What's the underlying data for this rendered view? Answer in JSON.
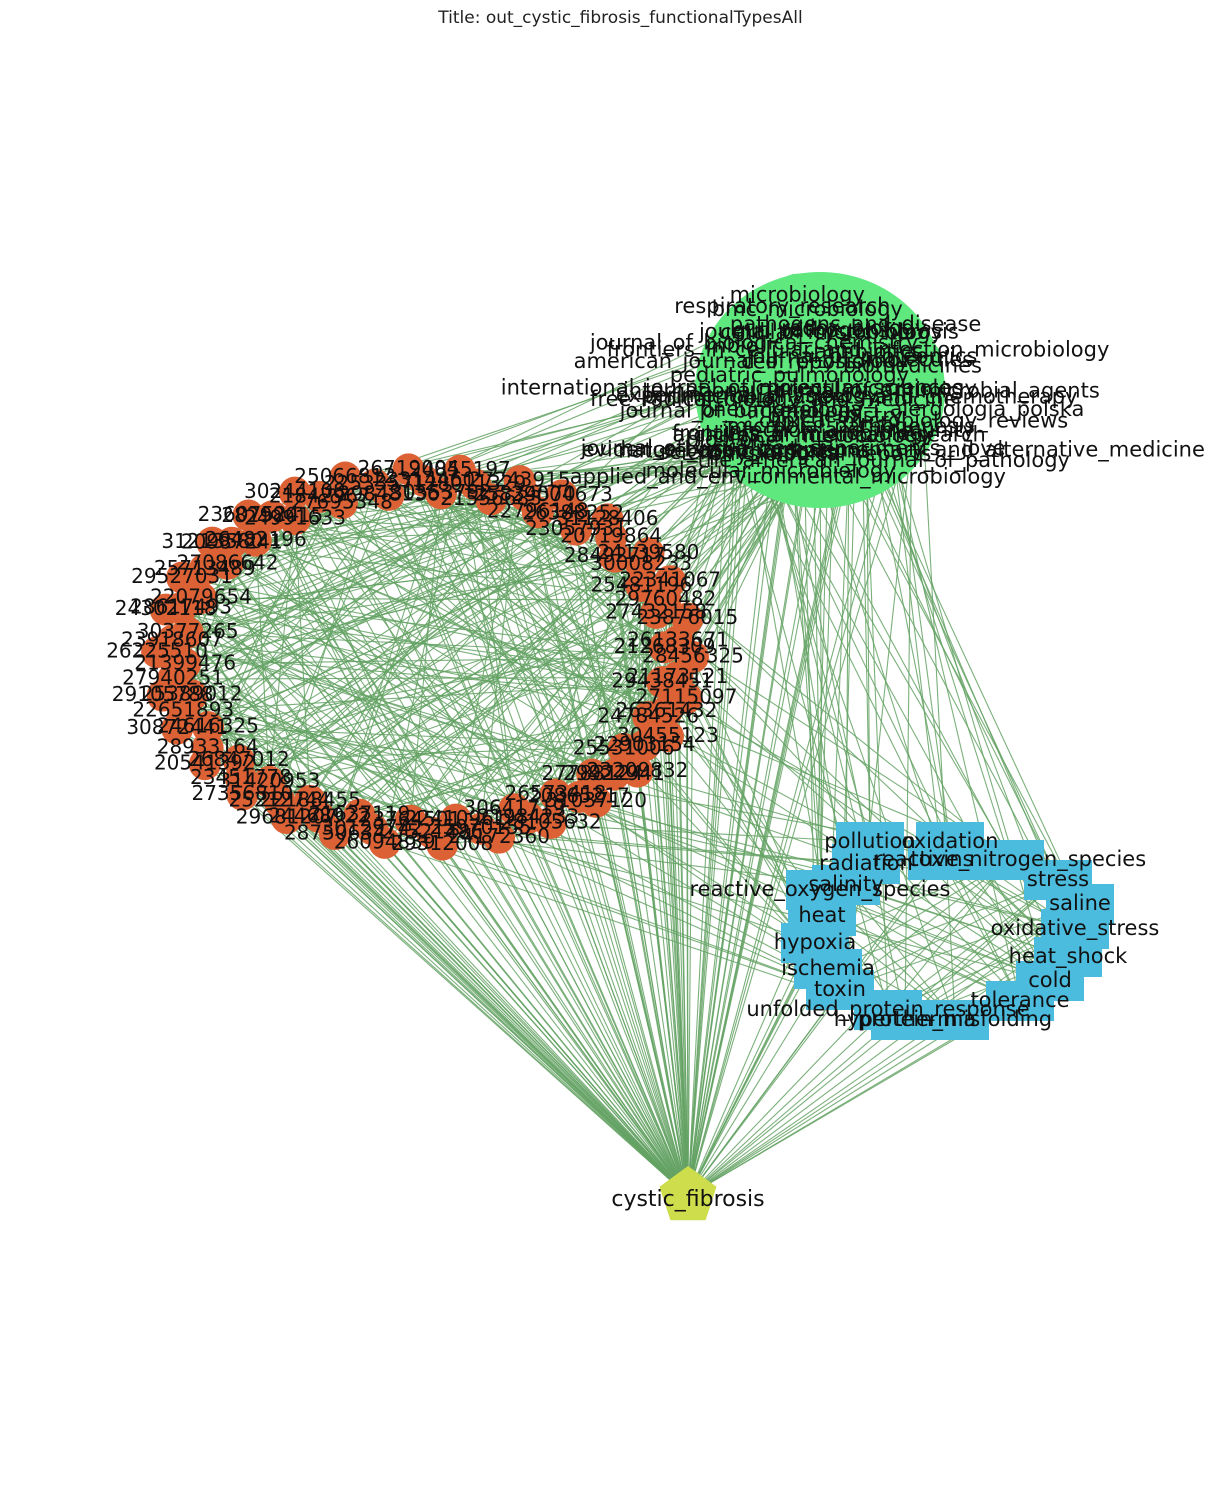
{
  "title": "Title: out_cystic_fibrosis_functionalTypesAll",
  "colors": {
    "edge": "#64a264",
    "journal_node": "#5ee87e",
    "paper_node": "#dc6236",
    "stress_node": "#4bbcde",
    "disease_node": "#cedd4c",
    "label": "#111111"
  },
  "nodes": {
    "disease": {
      "label": "cystic_fibrosis",
      "shape": "pentagon"
    },
    "stress_types": [
      "pollution",
      "oxidation",
      "radiation",
      "toxins",
      "reactive_nitrogen_species",
      "salinity",
      "stress",
      "reactive_oxygen_species",
      "saline",
      "heat",
      "oxidative_stress",
      "hypoxia",
      "heat_shock",
      "ischemia",
      "cold",
      "toxin",
      "tolerance",
      "unfolded_protein_response",
      "protein_misfolding",
      "hyperthermia"
    ],
    "journals": [
      "antimicrobial_agents_and_chemotherapy",
      "pneumonologia_i_alergologia_polska",
      "clinical_microbiology_reviews",
      "evidence-based_complementary_and_alternative_medicine",
      "the_american_journal_of_pathology",
      "infection_and_immunity",
      "microbial_pathogenesis",
      "biochemistry",
      "archives_of_medical_research",
      "physiological_reports",
      "j_clinical_microbiology",
      "frontiers_in_microbiology",
      "applied_and_environmental_microbiology",
      "journal_of_visualized_experiments__jove",
      "molecular_microbiology",
      "nature_communications",
      "scientific_reports",
      "plos_one",
      "journal_of_bacteriology",
      "free_radical_biology_and_medicine",
      "experimental_physiology",
      "international_journal_of_molecular_sciences",
      "american_journal_of_physiology",
      "pediatric_pulmonology",
      "mbio",
      "journal_of_biological_chemistry",
      "cell_reports",
      "respiratory_research",
      "microbiology",
      "gut_pathogens",
      "bmc_microbiology",
      "cellular_microbiology",
      "journal_of_cystic_fibrosis",
      "redox_biology",
      "pathogens_and_disease",
      "frontiers_in_cellular_and_infection_microbiology",
      "antibiotics",
      "journal_of_proteomics",
      "molecules",
      "biomedicines",
      "current_microbiology",
      "international_journal_of_antimicrobial_agents"
    ],
    "papers": [
      "28456325",
      "21173121",
      "29438451",
      "27115097",
      "26361432",
      "24784526",
      "30455123",
      "22903154",
      "25531006",
      "23209832",
      "29922941",
      "27788124",
      "31037120",
      "20865217",
      "26573418",
      "28105632",
      "21984233",
      "30641719",
      "24172360",
      "25970155",
      "22410961",
      "29312008",
      "27521486",
      "23764501",
      "26094839",
      "30129742",
      "21637119",
      "28750634",
      "24468922",
      "22188455",
      "29681207",
      "25212744",
      "31420953",
      "27356810",
      "23451778",
      "26847012",
      "20541392",
      "28933164",
      "24616325",
      "30872441",
      "22651893",
      "25389012",
      "29105788",
      "27940251",
      "21399476",
      "26225510",
      "23918607",
      "30377265",
      "24302118",
      "28617493",
      "22079654",
      "29527031",
      "25713489",
      "27086642",
      "31213580",
      "20987241",
      "26482196",
      "23607524",
      "28298015",
      "24991633",
      "30244108",
      "21842967",
      "27695348",
      "25066812",
      "22533571",
      "29848136",
      "26719004",
      "23314460",
      "30553792",
      "24855197",
      "28011329",
      "21556683",
      "27243915",
      "25834570",
      "22796148",
      "29004673",
      "26388252",
      "23057931",
      "31128406",
      "20719864",
      "28492717",
      "24139580",
      "30008233",
      "25481196",
      "22341067",
      "29760482",
      "27432158",
      "23876015",
      "26133671",
      "21268309"
    ]
  }
}
